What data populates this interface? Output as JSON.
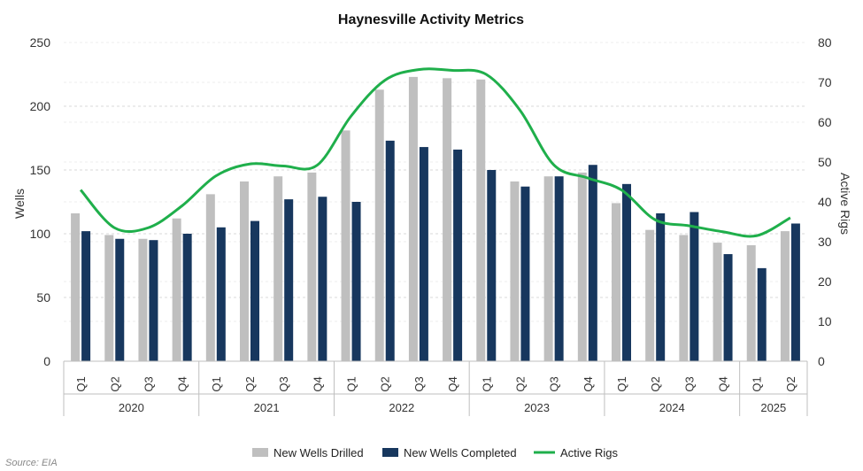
{
  "chart_data": {
    "type": "bar",
    "title": "Haynesville Activity Metrics",
    "ylabel": "Wells",
    "y2label": "Active Rigs",
    "ylim": [
      0,
      250
    ],
    "y2lim": [
      0,
      80
    ],
    "yticks": [
      0,
      50,
      100,
      150,
      200,
      250
    ],
    "y2ticks": [
      0,
      10,
      20,
      30,
      40,
      50,
      60,
      70,
      80
    ],
    "grid": true,
    "legend_position": "bottom",
    "categories": [
      "Q1",
      "Q2",
      "Q3",
      "Q4",
      "Q1",
      "Q2",
      "Q3",
      "Q4",
      "Q1",
      "Q2",
      "Q3",
      "Q4",
      "Q1",
      "Q2",
      "Q3",
      "Q4",
      "Q1",
      "Q2",
      "Q3",
      "Q4",
      "Q1",
      "Q2"
    ],
    "years": [
      {
        "label": "2020",
        "count": 4
      },
      {
        "label": "2021",
        "count": 4
      },
      {
        "label": "2022",
        "count": 4
      },
      {
        "label": "2023",
        "count": 4
      },
      {
        "label": "2024",
        "count": 4
      },
      {
        "label": "2025",
        "count": 2
      }
    ],
    "series": [
      {
        "name": "New Wells Drilled",
        "kind": "bar",
        "axis": "left",
        "color": "#bfbfbf",
        "values": [
          116,
          99,
          96,
          112,
          131,
          141,
          145,
          148,
          181,
          213,
          223,
          222,
          221,
          141,
          145,
          148,
          124,
          103,
          99,
          93,
          91,
          102
        ]
      },
      {
        "name": "New Wells Completed",
        "kind": "bar",
        "axis": "left",
        "color": "#17375e",
        "values": [
          102,
          96,
          95,
          100,
          105,
          110,
          127,
          129,
          125,
          173,
          168,
          166,
          150,
          137,
          145,
          154,
          139,
          116,
          117,
          84,
          73,
          108
        ]
      },
      {
        "name": "Active Rigs",
        "kind": "line",
        "axis": "right",
        "color": "#1faf4b",
        "values": [
          43,
          33.5,
          33.5,
          39,
          46.5,
          49.5,
          49,
          49.2,
          61.5,
          70.5,
          73.2,
          73,
          72,
          63,
          49.3,
          46,
          43,
          35.5,
          34,
          32.5,
          31.5,
          36
        ]
      }
    ],
    "source": "Source: EIA"
  }
}
